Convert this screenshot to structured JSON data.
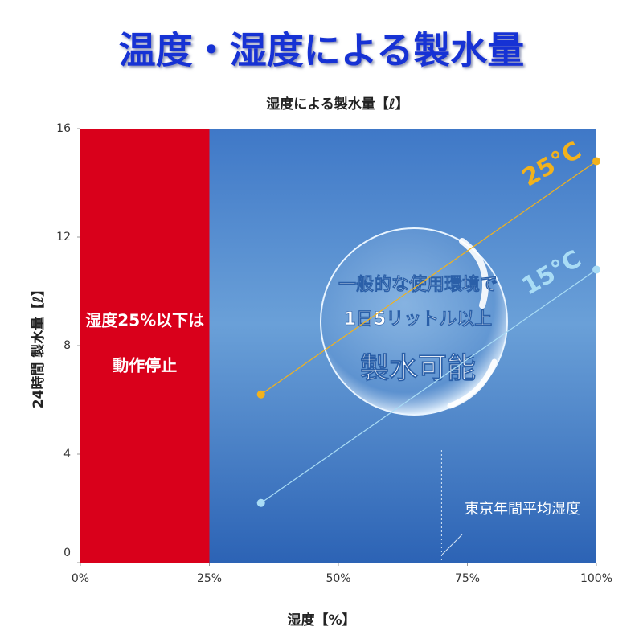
{
  "chart_data": {
    "type": "line",
    "title": "温度・湿度による製水量",
    "subtitle": "湿度による製水量【ℓ】",
    "x_label": "湿度【%】",
    "y_label": "24時間 製水量【ℓ】",
    "xlim": [
      0,
      100
    ],
    "xticks": [
      {
        "value": 0,
        "label": "0%"
      },
      {
        "value": 25,
        "label": "25%"
      },
      {
        "value": 50,
        "label": "50%"
      },
      {
        "value": 75,
        "label": "75%"
      },
      {
        "value": 100,
        "label": "100%"
      }
    ],
    "ylim": [
      0,
      16
    ],
    "yticks": [
      0,
      4,
      8,
      12,
      16
    ],
    "shaded_region": {
      "xlim": [
        0,
        25
      ],
      "color": "#d9001b",
      "text": [
        "湿度25%以下は",
        "動作停止"
      ]
    },
    "reference_line": {
      "x": 70,
      "text": "東京年間平均湿度"
    },
    "bubble_text": [
      "一般的な使用環境で",
      "1日5リットル以上",
      "製水可能"
    ],
    "series": [
      {
        "name": "25°C",
        "color": "#f2b21c",
        "x": [
          35,
          100
        ],
        "values": [
          6.2,
          14.8
        ]
      },
      {
        "name": "15°C",
        "color": "#a9dcf5",
        "x": [
          35,
          100
        ],
        "values": [
          2.2,
          10.8
        ]
      }
    ]
  }
}
